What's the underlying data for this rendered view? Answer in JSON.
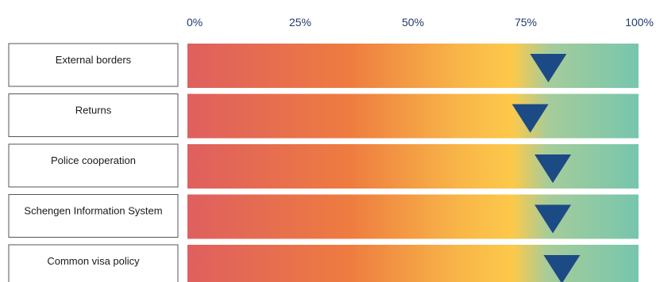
{
  "chart_data": {
    "type": "bar",
    "title": "",
    "xlabel": "",
    "ylabel": "",
    "x_range": [
      0,
      100
    ],
    "grid": false,
    "legend": "none",
    "x_ticks": [
      "0%",
      "25%",
      "50%",
      "75%",
      "100%"
    ],
    "x_tick_values": [
      0,
      25,
      50,
      75,
      100
    ],
    "categories": [
      "External borders",
      "Returns",
      "Police cooperation",
      "Schengen Information System",
      "Common visa policy"
    ],
    "series": [
      {
        "values": [
          80,
          76,
          81,
          81,
          83
        ]
      }
    ],
    "colors": {
      "gradient": [
        "#df5f5f",
        "#ee7c40",
        "#f8b548",
        "#fdc94a",
        "#a6cc9a",
        "#76c6ad"
      ],
      "marker": "#1c4a85",
      "tick_text": "#1f3a6e",
      "label_border": "#555555"
    },
    "marker_icon": "down-triangle"
  }
}
